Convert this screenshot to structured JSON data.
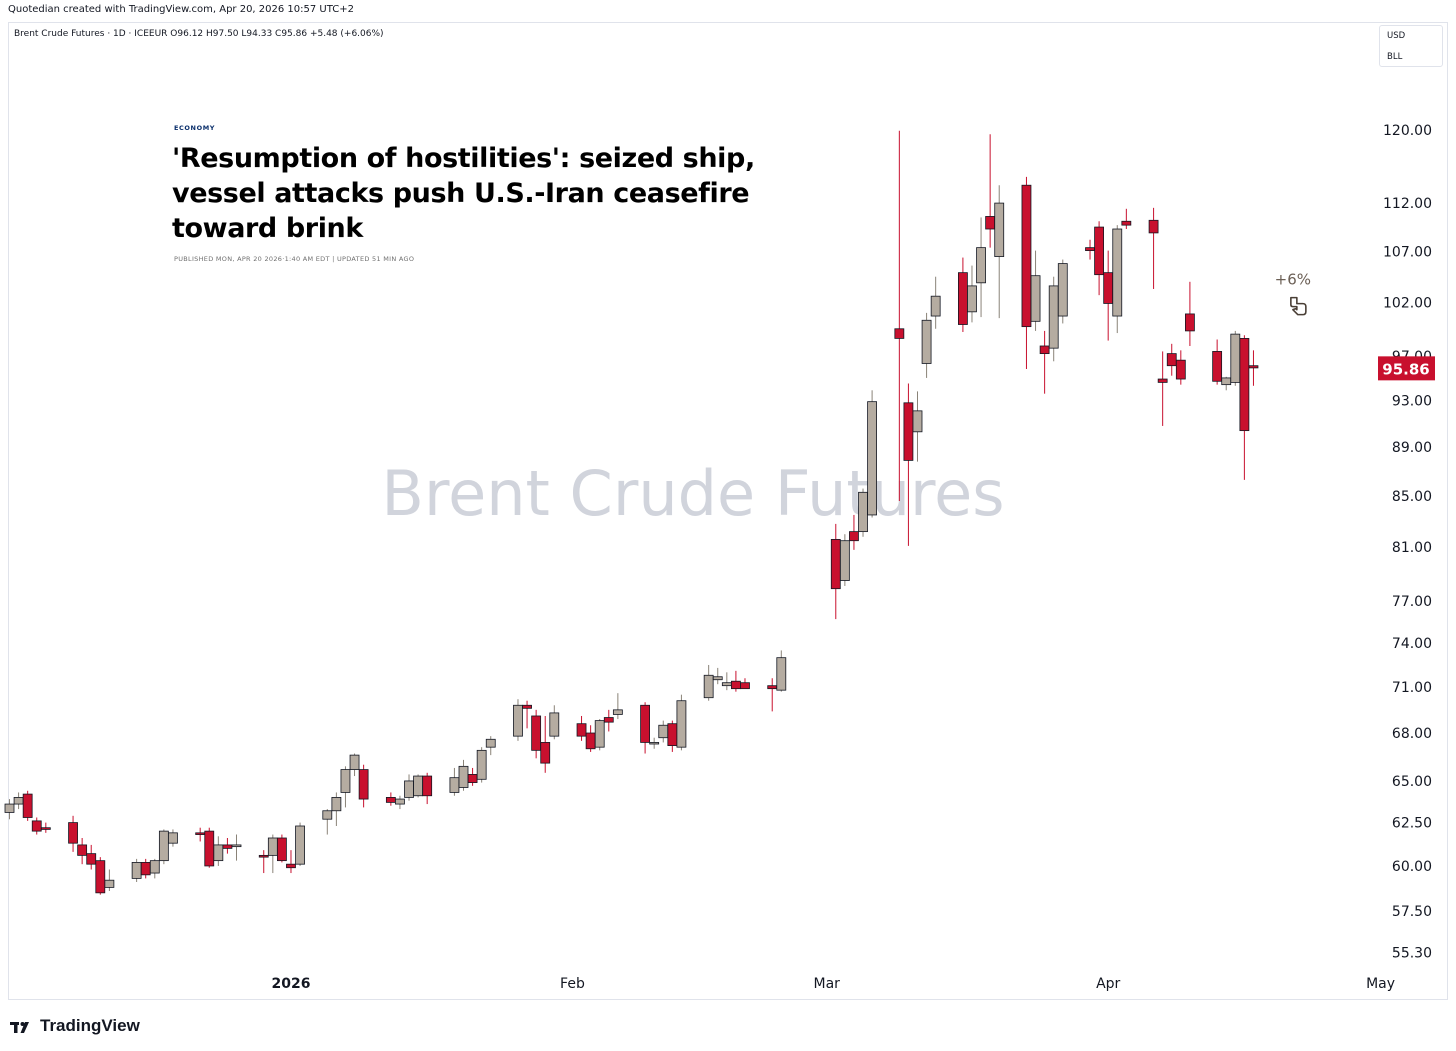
{
  "header": {
    "credit": "Quotedian created with TradingView.com, Apr 20, 2026 10:57 UTC+2",
    "symbol_line": "Brent Crude Futures · 1D · ICEEUR  O96.12  H97.50  L94.33  C95.86  +5.48 (+6.06%)",
    "currency": "USD",
    "unit": "BLL"
  },
  "news": {
    "section": "ECONOMY",
    "headline": "'Resumption of hostilities': seized ship, vessel attacks push U.S.-Iran ceasefire toward brink",
    "byline": "PUBLISHED MON, APR 20 2026·1:40 AM EDT | UPDATED 51 MIN AGO"
  },
  "footer": {
    "brand": "TradingView"
  },
  "colors": {
    "up": "#b5aca1",
    "down": "#c8102e",
    "price_label": "#c8102e",
    "watermark": "#d1d4dc"
  },
  "chart_data": {
    "type": "candlestick",
    "watermark": "Brent Crude Futures",
    "y_axis": {
      "scale": "log",
      "range": [
        54.4,
        124
      ],
      "ticks": [
        "120.00",
        "112.00",
        "107.00",
        "102.00",
        "97.00",
        "93.00",
        "89.00",
        "85.00",
        "81.00",
        "77.00",
        "74.00",
        "71.00",
        "68.00",
        "65.00",
        "62.50",
        "60.00",
        "57.50",
        "55.30"
      ]
    },
    "x_axis": {
      "ticks": [
        {
          "label": "2026",
          "date": "2026-01-01"
        },
        {
          "label": "Feb",
          "date": "2026-02-01"
        },
        {
          "label": "Mar",
          "date": "2026-03-01"
        },
        {
          "label": "Apr",
          "date": "2026-04-01"
        },
        {
          "label": "May",
          "date": "2026-05-01"
        }
      ],
      "range": [
        "2025-12-01",
        "2026-05-01"
      ]
    },
    "last_price": {
      "value": 95.86,
      "label": "95.86"
    },
    "annotation": {
      "text": "+6%",
      "icon": "pointing-hand-icon",
      "date": "2026-04-22",
      "price": 101.5
    },
    "candles": [
      {
        "d": "2025-12-01",
        "o": 63.1,
        "h": 63.9,
        "l": 62.7,
        "c": 63.6
      },
      {
        "d": "2025-12-02",
        "o": 63.6,
        "h": 64.3,
        "l": 63.3,
        "c": 64.0
      },
      {
        "d": "2025-12-03",
        "o": 64.2,
        "h": 64.4,
        "l": 62.6,
        "c": 62.8
      },
      {
        "d": "2025-12-04",
        "o": 62.6,
        "h": 62.8,
        "l": 61.8,
        "c": 62.0
      },
      {
        "d": "2025-12-05",
        "o": 62.2,
        "h": 62.5,
        "l": 61.9,
        "c": 62.1
      },
      {
        "d": "2025-12-08",
        "o": 62.5,
        "h": 62.9,
        "l": 60.8,
        "c": 61.3
      },
      {
        "d": "2025-12-09",
        "o": 61.2,
        "h": 61.6,
        "l": 60.1,
        "c": 60.6
      },
      {
        "d": "2025-12-10",
        "o": 60.7,
        "h": 61.2,
        "l": 59.8,
        "c": 60.1
      },
      {
        "d": "2025-12-11",
        "o": 60.3,
        "h": 60.5,
        "l": 58.4,
        "c": 58.5
      },
      {
        "d": "2025-12-12",
        "o": 58.8,
        "h": 59.8,
        "l": 58.6,
        "c": 59.2
      },
      {
        "d": "2025-12-15",
        "o": 59.3,
        "h": 60.4,
        "l": 59.1,
        "c": 60.2
      },
      {
        "d": "2025-12-16",
        "o": 60.2,
        "h": 60.4,
        "l": 59.3,
        "c": 59.5
      },
      {
        "d": "2025-12-17",
        "o": 59.6,
        "h": 60.4,
        "l": 59.3,
        "c": 60.3
      },
      {
        "d": "2025-12-18",
        "o": 60.3,
        "h": 62.1,
        "l": 60.1,
        "c": 62.0
      },
      {
        "d": "2025-12-19",
        "o": 61.3,
        "h": 62.1,
        "l": 61.1,
        "c": 61.9
      },
      {
        "d": "2025-12-22",
        "o": 61.9,
        "h": 62.2,
        "l": 61.4,
        "c": 61.8
      },
      {
        "d": "2025-12-23",
        "o": 62.0,
        "h": 62.2,
        "l": 59.9,
        "c": 60.0
      },
      {
        "d": "2025-12-24",
        "o": 60.3,
        "h": 61.7,
        "l": 60.0,
        "c": 61.2
      },
      {
        "d": "2025-12-25",
        "o": 61.2,
        "h": 61.6,
        "l": 60.7,
        "c": 61.0
      },
      {
        "d": "2025-12-26",
        "o": 61.1,
        "h": 61.8,
        "l": 60.3,
        "c": 61.2
      },
      {
        "d": "2025-12-29",
        "o": 60.6,
        "h": 60.9,
        "l": 59.6,
        "c": 60.5
      },
      {
        "d": "2025-12-30",
        "o": 60.6,
        "h": 61.8,
        "l": 59.6,
        "c": 61.6
      },
      {
        "d": "2025-12-31",
        "o": 61.6,
        "h": 61.8,
        "l": 60.2,
        "c": 60.3
      },
      {
        "d": "2026-01-01",
        "o": 60.1,
        "h": 60.9,
        "l": 59.6,
        "c": 59.9
      },
      {
        "d": "2026-01-02",
        "o": 60.1,
        "h": 62.5,
        "l": 60.0,
        "c": 62.3
      },
      {
        "d": "2026-01-05",
        "o": 62.7,
        "h": 63.3,
        "l": 61.8,
        "c": 63.2
      },
      {
        "d": "2026-01-06",
        "o": 63.2,
        "h": 64.3,
        "l": 62.3,
        "c": 64.0
      },
      {
        "d": "2026-01-07",
        "o": 64.3,
        "h": 65.9,
        "l": 63.4,
        "c": 65.7
      },
      {
        "d": "2026-01-08",
        "o": 65.7,
        "h": 66.7,
        "l": 65.3,
        "c": 66.6
      },
      {
        "d": "2026-01-09",
        "o": 65.7,
        "h": 66.0,
        "l": 63.4,
        "c": 63.9
      },
      {
        "d": "2026-01-12",
        "o": 64.0,
        "h": 64.3,
        "l": 63.5,
        "c": 63.7
      },
      {
        "d": "2026-01-13",
        "o": 63.6,
        "h": 64.1,
        "l": 63.3,
        "c": 63.9
      },
      {
        "d": "2026-01-14",
        "o": 64.0,
        "h": 65.4,
        "l": 63.8,
        "c": 65.0
      },
      {
        "d": "2026-01-15",
        "o": 64.1,
        "h": 65.4,
        "l": 64.0,
        "c": 65.3
      },
      {
        "d": "2026-01-16",
        "o": 65.3,
        "h": 65.5,
        "l": 63.6,
        "c": 64.1
      },
      {
        "d": "2026-01-19",
        "o": 64.3,
        "h": 65.8,
        "l": 64.1,
        "c": 65.2
      },
      {
        "d": "2026-01-20",
        "o": 64.6,
        "h": 66.3,
        "l": 64.4,
        "c": 65.9
      },
      {
        "d": "2026-01-21",
        "o": 65.4,
        "h": 65.8,
        "l": 64.7,
        "c": 64.9
      },
      {
        "d": "2026-01-22",
        "o": 65.1,
        "h": 67.1,
        "l": 64.9,
        "c": 66.9
      },
      {
        "d": "2026-01-23",
        "o": 67.1,
        "h": 67.8,
        "l": 66.6,
        "c": 67.6
      },
      {
        "d": "2026-01-26",
        "o": 67.8,
        "h": 70.2,
        "l": 67.5,
        "c": 69.8
      },
      {
        "d": "2026-01-27",
        "o": 69.8,
        "h": 70.1,
        "l": 68.3,
        "c": 69.6
      },
      {
        "d": "2026-01-28",
        "o": 69.1,
        "h": 69.5,
        "l": 66.4,
        "c": 66.9
      },
      {
        "d": "2026-01-29",
        "o": 67.4,
        "h": 69.1,
        "l": 65.5,
        "c": 66.1
      },
      {
        "d": "2026-01-30",
        "o": 67.8,
        "h": 69.8,
        "l": 67.6,
        "c": 69.3
      },
      {
        "d": "2026-02-02",
        "o": 68.6,
        "h": 69.1,
        "l": 67.5,
        "c": 67.8
      },
      {
        "d": "2026-02-03",
        "o": 68.0,
        "h": 68.5,
        "l": 66.8,
        "c": 67.0
      },
      {
        "d": "2026-02-04",
        "o": 67.1,
        "h": 68.9,
        "l": 66.9,
        "c": 68.8
      },
      {
        "d": "2026-02-05",
        "o": 69.0,
        "h": 69.5,
        "l": 68.1,
        "c": 68.7
      },
      {
        "d": "2026-02-06",
        "o": 69.2,
        "h": 70.6,
        "l": 68.9,
        "c": 69.5
      },
      {
        "d": "2026-02-09",
        "o": 69.8,
        "h": 70.0,
        "l": 66.7,
        "c": 67.4
      },
      {
        "d": "2026-02-10",
        "o": 67.3,
        "h": 67.7,
        "l": 67.0,
        "c": 67.4
      },
      {
        "d": "2026-02-11",
        "o": 67.7,
        "h": 68.8,
        "l": 67.4,
        "c": 68.5
      },
      {
        "d": "2026-02-12",
        "o": 68.6,
        "h": 68.8,
        "l": 66.8,
        "c": 67.2
      },
      {
        "d": "2026-02-13",
        "o": 67.1,
        "h": 70.5,
        "l": 66.9,
        "c": 70.1
      },
      {
        "d": "2026-02-16",
        "o": 70.3,
        "h": 72.5,
        "l": 70.1,
        "c": 71.8
      },
      {
        "d": "2026-02-17",
        "o": 71.5,
        "h": 72.3,
        "l": 71.2,
        "c": 71.7
      },
      {
        "d": "2026-02-18",
        "o": 71.1,
        "h": 72.0,
        "l": 70.8,
        "c": 71.3
      },
      {
        "d": "2026-02-19",
        "o": 71.4,
        "h": 72.1,
        "l": 70.7,
        "c": 70.9
      },
      {
        "d": "2026-02-20",
        "o": 71.3,
        "h": 71.6,
        "l": 70.9,
        "c": 70.9
      },
      {
        "d": "2026-02-23",
        "o": 71.1,
        "h": 71.6,
        "l": 69.4,
        "c": 70.9
      },
      {
        "d": "2026-02-24",
        "o": 70.8,
        "h": 73.5,
        "l": 70.7,
        "c": 73.0
      },
      {
        "d": "2026-03-02",
        "o": 81.6,
        "h": 82.8,
        "l": 75.7,
        "c": 77.9
      },
      {
        "d": "2026-03-03",
        "o": 78.5,
        "h": 82.0,
        "l": 78.1,
        "c": 81.5
      },
      {
        "d": "2026-03-04",
        "o": 82.2,
        "h": 83.5,
        "l": 80.8,
        "c": 81.5
      },
      {
        "d": "2026-03-05",
        "o": 82.2,
        "h": 85.6,
        "l": 81.8,
        "c": 85.3
      },
      {
        "d": "2026-03-06",
        "o": 83.5,
        "h": 93.9,
        "l": 83.3,
        "c": 92.9
      },
      {
        "d": "2026-03-09",
        "o": 99.5,
        "h": 119.9,
        "l": 84.6,
        "c": 98.6
      },
      {
        "d": "2026-03-10",
        "o": 92.8,
        "h": 94.5,
        "l": 81.1,
        "c": 87.9
      },
      {
        "d": "2026-03-11",
        "o": 90.3,
        "h": 93.8,
        "l": 87.8,
        "c": 92.1
      },
      {
        "d": "2026-03-12",
        "o": 96.3,
        "h": 101.0,
        "l": 95.0,
        "c": 100.3
      },
      {
        "d": "2026-03-13",
        "o": 100.7,
        "h": 104.5,
        "l": 99.5,
        "c": 102.6
      },
      {
        "d": "2026-03-16",
        "o": 104.9,
        "h": 106.4,
        "l": 99.2,
        "c": 99.9
      },
      {
        "d": "2026-03-17",
        "o": 101.1,
        "h": 105.6,
        "l": 100.1,
        "c": 103.6
      },
      {
        "d": "2026-03-18",
        "o": 103.9,
        "h": 110.5,
        "l": 100.6,
        "c": 107.4
      },
      {
        "d": "2026-03-19",
        "o": 110.6,
        "h": 119.5,
        "l": 107.4,
        "c": 109.3
      },
      {
        "d": "2026-03-20",
        "o": 106.5,
        "h": 113.9,
        "l": 100.5,
        "c": 112.0
      },
      {
        "d": "2026-03-23",
        "o": 113.9,
        "h": 114.8,
        "l": 95.8,
        "c": 99.7
      },
      {
        "d": "2026-03-24",
        "o": 100.2,
        "h": 107.1,
        "l": 99.3,
        "c": 104.6
      },
      {
        "d": "2026-03-25",
        "o": 97.9,
        "h": 99.3,
        "l": 93.6,
        "c": 97.2
      },
      {
        "d": "2026-03-26",
        "o": 97.7,
        "h": 104.5,
        "l": 96.5,
        "c": 103.6
      },
      {
        "d": "2026-03-27",
        "o": 100.7,
        "h": 106.2,
        "l": 100.0,
        "c": 105.8
      },
      {
        "d": "2026-03-30",
        "o": 107.4,
        "h": 108.2,
        "l": 106.2,
        "c": 107.1
      },
      {
        "d": "2026-03-31",
        "o": 109.5,
        "h": 110.1,
        "l": 102.7,
        "c": 104.7
      },
      {
        "d": "2026-04-01",
        "o": 104.9,
        "h": 107.1,
        "l": 98.4,
        "c": 101.9
      },
      {
        "d": "2026-04-02",
        "o": 100.7,
        "h": 109.7,
        "l": 99.1,
        "c": 109.3
      },
      {
        "d": "2026-04-03",
        "o": 110.1,
        "h": 111.4,
        "l": 109.3,
        "c": 109.7
      },
      {
        "d": "2026-04-06",
        "o": 110.2,
        "h": 111.5,
        "l": 103.3,
        "c": 108.9
      },
      {
        "d": "2026-04-07",
        "o": 94.9,
        "h": 97.4,
        "l": 90.8,
        "c": 94.6
      },
      {
        "d": "2026-04-08",
        "o": 97.2,
        "h": 98.1,
        "l": 95.2,
        "c": 96.1
      },
      {
        "d": "2026-04-09",
        "o": 96.6,
        "h": 97.5,
        "l": 94.4,
        "c": 94.9
      },
      {
        "d": "2026-04-10",
        "o": 100.9,
        "h": 104.0,
        "l": 97.9,
        "c": 99.3
      },
      {
        "d": "2026-04-13",
        "o": 97.4,
        "h": 98.5,
        "l": 94.4,
        "c": 94.7
      },
      {
        "d": "2026-04-14",
        "o": 94.4,
        "h": 95.1,
        "l": 93.9,
        "c": 95.0
      },
      {
        "d": "2026-04-15",
        "o": 94.6,
        "h": 99.3,
        "l": 94.3,
        "c": 99.0
      },
      {
        "d": "2026-04-16",
        "o": 98.6,
        "h": 98.9,
        "l": 86.3,
        "c": 90.4
      },
      {
        "d": "2026-04-17",
        "o": 96.1,
        "h": 97.5,
        "l": 94.3,
        "c": 95.9
      }
    ]
  }
}
